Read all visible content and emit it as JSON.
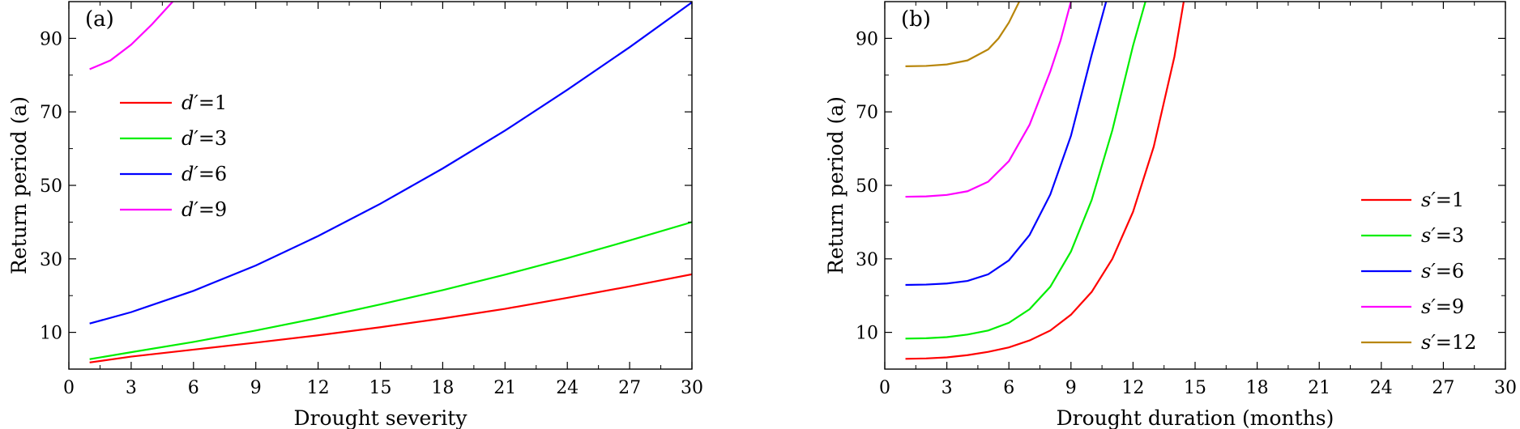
{
  "chart_data": [
    {
      "type": "line",
      "panel_label": "(a)",
      "xlabel": "Drought severity",
      "ylabel": "Return period (a)",
      "xlim": [
        0,
        30
      ],
      "ylim": [
        0,
        100
      ],
      "xticks": [
        "0",
        "3",
        "6",
        "9",
        "12",
        "15",
        "18",
        "21",
        "24",
        "27",
        "30"
      ],
      "yticks": [
        "10",
        "30",
        "50",
        "70",
        "90"
      ],
      "legend_position": "upper-left",
      "legend_var": "d",
      "series": [
        {
          "name": "d′=1",
          "var": "d′",
          "eq": "=1",
          "color": "#ff0000",
          "x": [
            1,
            3,
            6,
            9,
            12,
            15,
            18,
            21,
            24,
            27,
            30
          ],
          "y": [
            1.8,
            3.4,
            5.3,
            7.2,
            9.2,
            11.4,
            13.8,
            16.4,
            19.4,
            22.5,
            25.8
          ]
        },
        {
          "name": "d′=3",
          "var": "d′",
          "eq": "=3",
          "color": "#00ee00",
          "x": [
            1,
            3,
            6,
            9,
            12,
            15,
            18,
            21,
            24,
            27,
            30
          ],
          "y": [
            2.7,
            4.6,
            7.4,
            10.5,
            13.9,
            17.6,
            21.5,
            25.7,
            30.2,
            35.0,
            40.0
          ]
        },
        {
          "name": "d′=6",
          "var": "d′",
          "eq": "=6",
          "color": "#0000ff",
          "x": [
            1,
            3,
            6,
            9,
            12,
            15,
            18,
            21,
            24,
            27,
            30
          ],
          "y": [
            12.4,
            15.5,
            21.3,
            28.2,
            36.2,
            45.0,
            54.6,
            64.9,
            76.0,
            87.6,
            99.8
          ]
        },
        {
          "name": "d′=9",
          "var": "d′",
          "eq": "=9",
          "color": "#ff00ff",
          "x": [
            1,
            2,
            3,
            4,
            5
          ],
          "y": [
            81.6,
            84.0,
            88.3,
            93.8,
            100.0
          ]
        }
      ]
    },
    {
      "type": "line",
      "panel_label": "(b)",
      "xlabel": "Drought duration (months)",
      "ylabel": "Return period (a)",
      "xlim": [
        0,
        30
      ],
      "ylim": [
        0,
        100
      ],
      "xticks": [
        "0",
        "3",
        "6",
        "9",
        "12",
        "15",
        "18",
        "21",
        "24",
        "27",
        "30"
      ],
      "yticks": [
        "10",
        "30",
        "50",
        "70",
        "90"
      ],
      "legend_position": "lower-right",
      "series": [
        {
          "name": "s′=1",
          "var": "s′",
          "eq": "=1",
          "color": "#ff0000",
          "x": [
            1,
            2,
            3,
            4,
            5,
            6,
            7,
            8,
            9,
            10,
            11,
            12,
            13,
            14,
            14.45
          ],
          "y": [
            2.8,
            2.9,
            3.2,
            3.8,
            4.7,
            5.9,
            7.8,
            10.5,
            14.8,
            21.0,
            30.0,
            42.8,
            60.5,
            85.0,
            100.0
          ]
        },
        {
          "name": "s′=3",
          "var": "s′",
          "eq": "=3",
          "color": "#00ee00",
          "x": [
            1,
            2,
            3,
            4,
            5,
            6,
            7,
            8,
            9,
            10,
            11,
            12,
            12.6
          ],
          "y": [
            8.3,
            8.4,
            8.7,
            9.4,
            10.5,
            12.6,
            16.3,
            22.4,
            32.0,
            46.0,
            65.0,
            88.0,
            100.0
          ]
        },
        {
          "name": "s′=6",
          "var": "s′",
          "eq": "=6",
          "color": "#0000ff",
          "x": [
            1,
            2,
            3,
            4,
            5,
            6,
            7,
            8,
            9,
            10,
            10.7
          ],
          "y": [
            22.9,
            23.0,
            23.3,
            24.0,
            25.8,
            29.6,
            36.5,
            47.5,
            63.5,
            85.5,
            100.0
          ]
        },
        {
          "name": "s′=9",
          "var": "s′",
          "eq": "=9",
          "color": "#ff00ff",
          "x": [
            1,
            2,
            3,
            4,
            5,
            6,
            7,
            8,
            8.5,
            9.0
          ],
          "y": [
            46.9,
            47.0,
            47.4,
            48.4,
            51.0,
            56.6,
            66.5,
            81.0,
            89.5,
            100.0
          ]
        },
        {
          "name": "s′=12",
          "var": "s′",
          "eq": "=12",
          "color": "#b8860b",
          "x": [
            1,
            2,
            3,
            4,
            5,
            5.5,
            6.0,
            6.5
          ],
          "y": [
            82.4,
            82.5,
            82.9,
            84.0,
            87.0,
            90.0,
            94.3,
            100.0
          ]
        }
      ]
    }
  ]
}
